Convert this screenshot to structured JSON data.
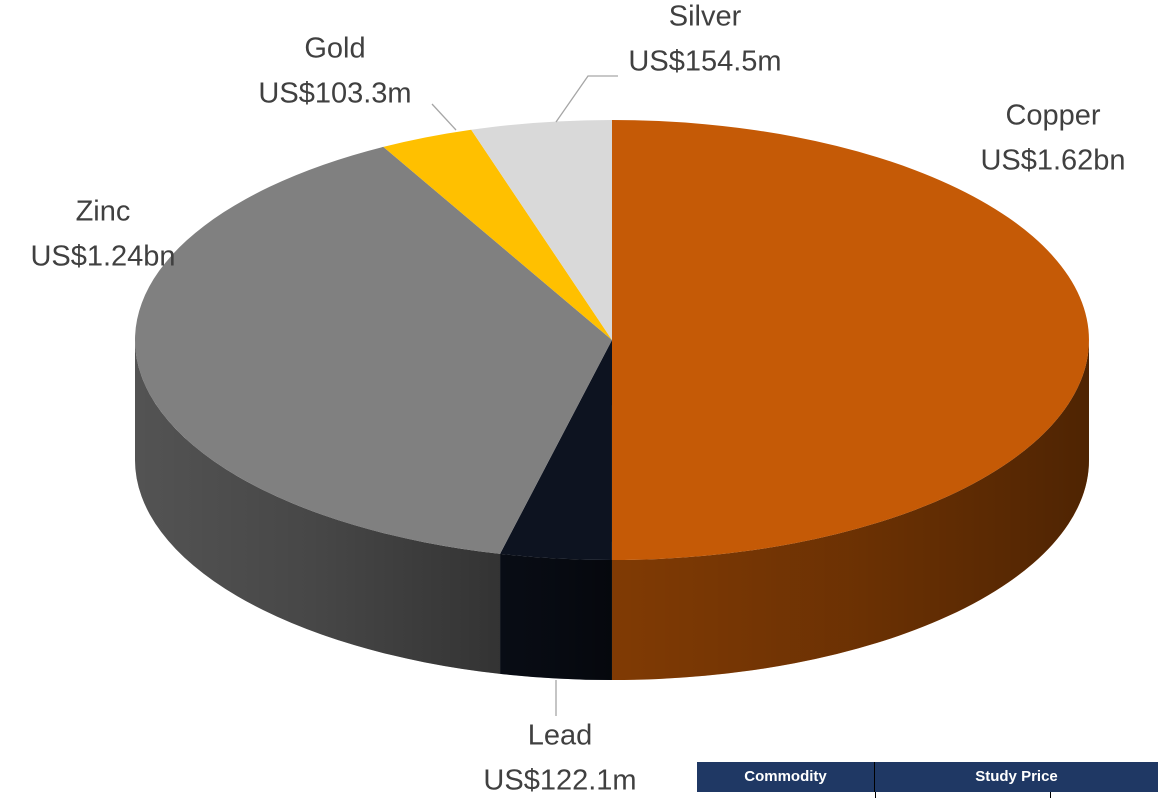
{
  "chart_data": {
    "type": "pie3d",
    "categories": [
      "Copper",
      "Lead",
      "Zinc",
      "Gold",
      "Silver"
    ],
    "values": [
      1620,
      122.1,
      1240,
      103.3,
      154.5
    ],
    "value_labels": [
      "US$1.62bn",
      "US$122.1m",
      "US$1.24bn",
      "US$103.3m",
      "US$154.5m"
    ],
    "colors": [
      "#c55a06",
      "#0d1320",
      "#808080",
      "#ffc000",
      "#d9d9d9"
    ]
  },
  "table": {
    "header": [
      "Commodity",
      "Study Price"
    ]
  }
}
